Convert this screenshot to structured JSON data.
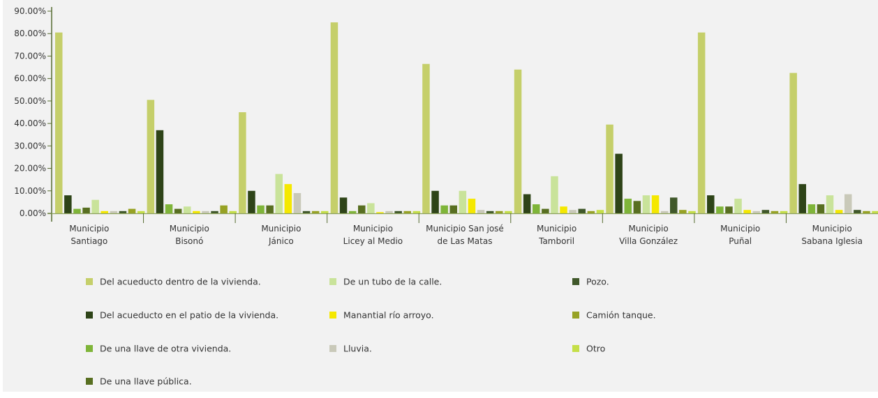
{
  "chart_data": {
    "type": "bar",
    "title": "",
    "xlabel": "",
    "ylabel": "",
    "ylim": [
      0,
      90
    ],
    "y_ticks": [
      "0.00%",
      "10.00%",
      "20.00%",
      "30.00%",
      "40.00%",
      "50.00%",
      "60.00%",
      "70.00%",
      "80.00%",
      "90.00%"
    ],
    "y_tick_values": [
      0,
      10,
      20,
      30,
      40,
      50,
      60,
      70,
      80,
      90
    ],
    "grid": false,
    "legend_position": "bottom",
    "categories": [
      [
        "Municipio",
        "Santiago"
      ],
      [
        "Municipio",
        "Bisonó"
      ],
      [
        "Municipio",
        "Jánico"
      ],
      [
        "Municipio",
        "Licey al Medio"
      ],
      [
        "Municipio San josé",
        "de Las Matas"
      ],
      [
        "Municipio",
        "Tamboril"
      ],
      [
        "Municipio",
        "Villa González"
      ],
      [
        "Municipio",
        "Puñal"
      ],
      [
        "Municipio",
        "Sabana  Iglesia"
      ]
    ],
    "series": [
      {
        "name": "Del acueducto dentro de la vivienda.",
        "color": "#c5cf6a",
        "values": [
          80.5,
          50.5,
          45,
          85,
          66.5,
          64,
          39.5,
          80.5,
          62.5
        ]
      },
      {
        "name": "Del acueducto en el patio de la vivienda.",
        "color": "#2e4418",
        "values": [
          8,
          37,
          10,
          7,
          10,
          8.5,
          26.5,
          8,
          13
        ]
      },
      {
        "name": "De una llave de otra vivienda.",
        "color": "#7fb539",
        "values": [
          2,
          4,
          3.5,
          1,
          3.5,
          4,
          6.5,
          3,
          4
        ]
      },
      {
        "name": "De una llave pública.",
        "color": "#586f21",
        "values": [
          2.5,
          2,
          3.5,
          3.5,
          3.5,
          2,
          5.5,
          3,
          4
        ]
      },
      {
        "name": "De un tubo de la calle.",
        "color": "#c9e39a",
        "values": [
          6,
          3,
          17.5,
          4.5,
          10,
          16.5,
          8,
          6.5,
          8
        ]
      },
      {
        "name": "Manantial río arroyo.",
        "color": "#f5e800",
        "values": [
          1,
          1,
          13,
          0.5,
          6.5,
          3,
          8,
          1.5,
          1.5
        ]
      },
      {
        "name": "Lluvia.",
        "color": "#c9c9b9",
        "values": [
          1,
          1,
          9,
          1,
          1.5,
          1.5,
          1,
          1,
          8.5
        ]
      },
      {
        "name": "Pozo.",
        "color": "#40582a",
        "values": [
          1,
          1,
          1,
          1,
          1,
          2,
          7,
          1.5,
          1.5
        ]
      },
      {
        "name": "Camión tanque.",
        "color": "#97a224",
        "values": [
          2,
          3.5,
          1,
          1,
          1,
          1,
          1.5,
          1,
          1
        ]
      },
      {
        "name": "Otro",
        "color": "#c5df48",
        "values": [
          1,
          1,
          1,
          1,
          1,
          1.5,
          1,
          1,
          1
        ]
      }
    ]
  }
}
